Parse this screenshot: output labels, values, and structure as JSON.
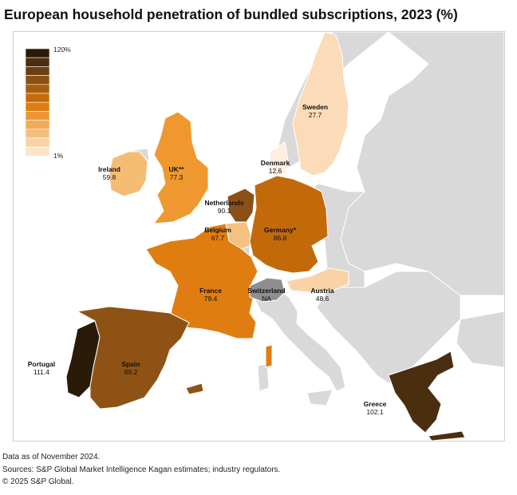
{
  "title": "European household penetration of bundled subscriptions, 2023 (%)",
  "legend": {
    "max_label": "120%",
    "min_label": "1%",
    "scale_colors": [
      "#2a1a08",
      "#4a2e10",
      "#6b3f12",
      "#8c5014",
      "#a85e10",
      "#c56b08",
      "#de7c10",
      "#ee9530",
      "#f2aa58",
      "#f5be7e",
      "#f8d2a5",
      "#fbe4c8"
    ]
  },
  "countries": [
    {
      "name": "Sweden",
      "value": "27.7",
      "color": "#fbdbb8"
    },
    {
      "name": "Denmark",
      "value": "12.6",
      "color": "#fdeede"
    },
    {
      "name": "Ireland",
      "value": "59.8",
      "color": "#f5bd74"
    },
    {
      "name": "UK**",
      "value": "77.3",
      "color": "#ee982f"
    },
    {
      "name": "Netherlands",
      "value": "90.1",
      "color": "#8a5016"
    },
    {
      "name": "Belgium",
      "value": "67.7",
      "color": "#f5c080"
    },
    {
      "name": "Germany*",
      "value": "86.8",
      "color": "#c26a0a"
    },
    {
      "name": "France",
      "value": "79.4",
      "color": "#e07d10"
    },
    {
      "name": "Switzerland",
      "value": "NA",
      "color": "#8e8e8e"
    },
    {
      "name": "Austria",
      "value": "48.6",
      "color": "#f9d3a8"
    },
    {
      "name": "Portugal",
      "value": "111.4",
      "color": "#2a1a08"
    },
    {
      "name": "Spain",
      "value": "89.2",
      "color": "#8e5314"
    },
    {
      "name": "Greece",
      "value": "102.1",
      "color": "#4a2e10"
    }
  ],
  "colors": {
    "land_other": "#d9d9d9",
    "sea": "#ffffff",
    "border": "#ffffff"
  },
  "footer": {
    "line1": "Data as of November 2024.",
    "line2": "Sources: S&P Global Market Intelligence Kagan estimates; industry regulators.",
    "line3": "© 2025 S&P Global."
  }
}
